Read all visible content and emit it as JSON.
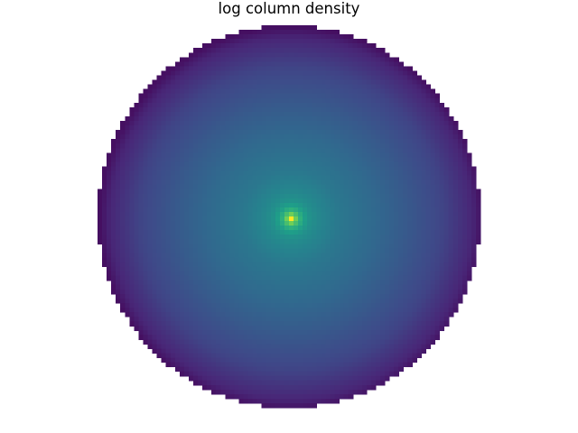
{
  "chart_data": {
    "type": "heatmap",
    "title": "log column density",
    "xlabel": "",
    "ylabel": "",
    "axes_visible": false,
    "grid": false,
    "legend": "none",
    "colormap": "viridis",
    "colormap_colors": [
      "#440154",
      "#482878",
      "#3e4a89",
      "#31688e",
      "#26828e",
      "#1f9e89",
      "#35b779",
      "#6ece58",
      "#b5de2b",
      "#fde725"
    ],
    "grid_size": [
      84,
      84
    ],
    "mask_shape": "circle",
    "peak_cell": [
      42,
      42
    ],
    "value_range": [
      0.0,
      1.0
    ],
    "radial_profile": {
      "r": [
        0.0,
        0.03,
        0.06,
        0.1,
        0.15,
        0.25,
        0.4,
        0.6,
        0.8,
        0.95,
        1.0
      ],
      "value": [
        1.0,
        0.72,
        0.58,
        0.5,
        0.46,
        0.4,
        0.35,
        0.28,
        0.2,
        0.1,
        0.04
      ]
    }
  }
}
